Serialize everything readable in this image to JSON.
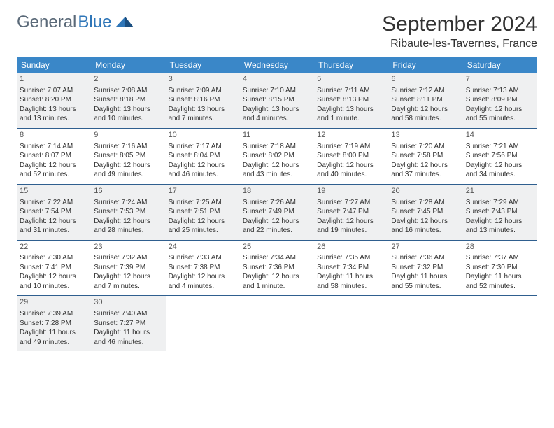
{
  "logo": {
    "text1": "General",
    "text2": "Blue"
  },
  "title": "September 2024",
  "location": "Ribaute-les-Tavernes, France",
  "header_bg": "#3a87c8",
  "header_fg": "#ffffff",
  "rule_color": "#2f5f8f",
  "shaded_bg": "#eff0f1",
  "day_headers": [
    "Sunday",
    "Monday",
    "Tuesday",
    "Wednesday",
    "Thursday",
    "Friday",
    "Saturday"
  ],
  "weeks": [
    [
      {
        "n": "1",
        "shade": true,
        "sr": "Sunrise: 7:07 AM",
        "ss": "Sunset: 8:20 PM",
        "d1": "Daylight: 13 hours",
        "d2": "and 13 minutes."
      },
      {
        "n": "2",
        "shade": true,
        "sr": "Sunrise: 7:08 AM",
        "ss": "Sunset: 8:18 PM",
        "d1": "Daylight: 13 hours",
        "d2": "and 10 minutes."
      },
      {
        "n": "3",
        "shade": true,
        "sr": "Sunrise: 7:09 AM",
        "ss": "Sunset: 8:16 PM",
        "d1": "Daylight: 13 hours",
        "d2": "and 7 minutes."
      },
      {
        "n": "4",
        "shade": true,
        "sr": "Sunrise: 7:10 AM",
        "ss": "Sunset: 8:15 PM",
        "d1": "Daylight: 13 hours",
        "d2": "and 4 minutes."
      },
      {
        "n": "5",
        "shade": true,
        "sr": "Sunrise: 7:11 AM",
        "ss": "Sunset: 8:13 PM",
        "d1": "Daylight: 13 hours",
        "d2": "and 1 minute."
      },
      {
        "n": "6",
        "shade": true,
        "sr": "Sunrise: 7:12 AM",
        "ss": "Sunset: 8:11 PM",
        "d1": "Daylight: 12 hours",
        "d2": "and 58 minutes."
      },
      {
        "n": "7",
        "shade": true,
        "sr": "Sunrise: 7:13 AM",
        "ss": "Sunset: 8:09 PM",
        "d1": "Daylight: 12 hours",
        "d2": "and 55 minutes."
      }
    ],
    [
      {
        "n": "8",
        "shade": false,
        "sr": "Sunrise: 7:14 AM",
        "ss": "Sunset: 8:07 PM",
        "d1": "Daylight: 12 hours",
        "d2": "and 52 minutes."
      },
      {
        "n": "9",
        "shade": false,
        "sr": "Sunrise: 7:16 AM",
        "ss": "Sunset: 8:05 PM",
        "d1": "Daylight: 12 hours",
        "d2": "and 49 minutes."
      },
      {
        "n": "10",
        "shade": false,
        "sr": "Sunrise: 7:17 AM",
        "ss": "Sunset: 8:04 PM",
        "d1": "Daylight: 12 hours",
        "d2": "and 46 minutes."
      },
      {
        "n": "11",
        "shade": false,
        "sr": "Sunrise: 7:18 AM",
        "ss": "Sunset: 8:02 PM",
        "d1": "Daylight: 12 hours",
        "d2": "and 43 minutes."
      },
      {
        "n": "12",
        "shade": false,
        "sr": "Sunrise: 7:19 AM",
        "ss": "Sunset: 8:00 PM",
        "d1": "Daylight: 12 hours",
        "d2": "and 40 minutes."
      },
      {
        "n": "13",
        "shade": false,
        "sr": "Sunrise: 7:20 AM",
        "ss": "Sunset: 7:58 PM",
        "d1": "Daylight: 12 hours",
        "d2": "and 37 minutes."
      },
      {
        "n": "14",
        "shade": false,
        "sr": "Sunrise: 7:21 AM",
        "ss": "Sunset: 7:56 PM",
        "d1": "Daylight: 12 hours",
        "d2": "and 34 minutes."
      }
    ],
    [
      {
        "n": "15",
        "shade": true,
        "sr": "Sunrise: 7:22 AM",
        "ss": "Sunset: 7:54 PM",
        "d1": "Daylight: 12 hours",
        "d2": "and 31 minutes."
      },
      {
        "n": "16",
        "shade": true,
        "sr": "Sunrise: 7:24 AM",
        "ss": "Sunset: 7:53 PM",
        "d1": "Daylight: 12 hours",
        "d2": "and 28 minutes."
      },
      {
        "n": "17",
        "shade": true,
        "sr": "Sunrise: 7:25 AM",
        "ss": "Sunset: 7:51 PM",
        "d1": "Daylight: 12 hours",
        "d2": "and 25 minutes."
      },
      {
        "n": "18",
        "shade": true,
        "sr": "Sunrise: 7:26 AM",
        "ss": "Sunset: 7:49 PM",
        "d1": "Daylight: 12 hours",
        "d2": "and 22 minutes."
      },
      {
        "n": "19",
        "shade": true,
        "sr": "Sunrise: 7:27 AM",
        "ss": "Sunset: 7:47 PM",
        "d1": "Daylight: 12 hours",
        "d2": "and 19 minutes."
      },
      {
        "n": "20",
        "shade": true,
        "sr": "Sunrise: 7:28 AM",
        "ss": "Sunset: 7:45 PM",
        "d1": "Daylight: 12 hours",
        "d2": "and 16 minutes."
      },
      {
        "n": "21",
        "shade": true,
        "sr": "Sunrise: 7:29 AM",
        "ss": "Sunset: 7:43 PM",
        "d1": "Daylight: 12 hours",
        "d2": "and 13 minutes."
      }
    ],
    [
      {
        "n": "22",
        "shade": false,
        "sr": "Sunrise: 7:30 AM",
        "ss": "Sunset: 7:41 PM",
        "d1": "Daylight: 12 hours",
        "d2": "and 10 minutes."
      },
      {
        "n": "23",
        "shade": false,
        "sr": "Sunrise: 7:32 AM",
        "ss": "Sunset: 7:39 PM",
        "d1": "Daylight: 12 hours",
        "d2": "and 7 minutes."
      },
      {
        "n": "24",
        "shade": false,
        "sr": "Sunrise: 7:33 AM",
        "ss": "Sunset: 7:38 PM",
        "d1": "Daylight: 12 hours",
        "d2": "and 4 minutes."
      },
      {
        "n": "25",
        "shade": false,
        "sr": "Sunrise: 7:34 AM",
        "ss": "Sunset: 7:36 PM",
        "d1": "Daylight: 12 hours",
        "d2": "and 1 minute."
      },
      {
        "n": "26",
        "shade": false,
        "sr": "Sunrise: 7:35 AM",
        "ss": "Sunset: 7:34 PM",
        "d1": "Daylight: 11 hours",
        "d2": "and 58 minutes."
      },
      {
        "n": "27",
        "shade": false,
        "sr": "Sunrise: 7:36 AM",
        "ss": "Sunset: 7:32 PM",
        "d1": "Daylight: 11 hours",
        "d2": "and 55 minutes."
      },
      {
        "n": "28",
        "shade": false,
        "sr": "Sunrise: 7:37 AM",
        "ss": "Sunset: 7:30 PM",
        "d1": "Daylight: 11 hours",
        "d2": "and 52 minutes."
      }
    ],
    [
      {
        "n": "29",
        "shade": true,
        "sr": "Sunrise: 7:39 AM",
        "ss": "Sunset: 7:28 PM",
        "d1": "Daylight: 11 hours",
        "d2": "and 49 minutes."
      },
      {
        "n": "30",
        "shade": true,
        "sr": "Sunrise: 7:40 AM",
        "ss": "Sunset: 7:27 PM",
        "d1": "Daylight: 11 hours",
        "d2": "and 46 minutes."
      },
      {
        "empty": true
      },
      {
        "empty": true
      },
      {
        "empty": true
      },
      {
        "empty": true
      },
      {
        "empty": true
      }
    ]
  ]
}
